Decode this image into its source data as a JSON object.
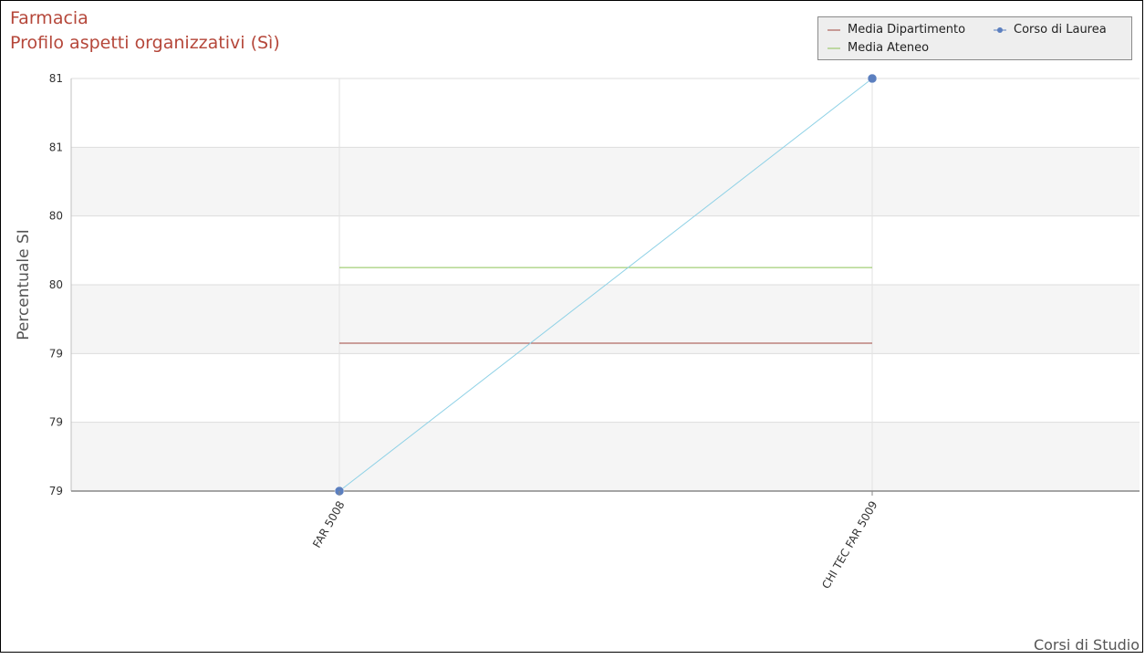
{
  "chart_data": {
    "type": "line",
    "title": "Farmacia",
    "subtitle": "Profilo aspetti organizzativi (Sì)",
    "xlabel": "",
    "ylabel": "Percentuale SI",
    "credits": "Corsi di Studio",
    "categories": [
      "FAR 5008",
      "CHI TEC FAR 5009"
    ],
    "y_tick_labels": [
      "79",
      "79",
      "79",
      "80",
      "80",
      "81",
      "81"
    ],
    "ylim": [
      78.8,
      81.2
    ],
    "grid": true,
    "legend_position": "top-right",
    "series": [
      {
        "name": "Media Dipartimento",
        "values": [
          79.66,
          79.66
        ],
        "color": "#a0463f",
        "marker": "none"
      },
      {
        "name": "Media Ateneo",
        "values": [
          80.1,
          80.1
        ],
        "color": "#8ec356",
        "marker": "none"
      },
      {
        "name": "Corso di Laurea",
        "values": [
          78.8,
          81.2
        ],
        "color": "#8ed1e6",
        "marker": "circle",
        "marker_color": "#5b7fbf"
      }
    ],
    "legend_swatch_colors": [
      "#a0463f",
      "#8ec356",
      "#5b7fbf"
    ]
  }
}
